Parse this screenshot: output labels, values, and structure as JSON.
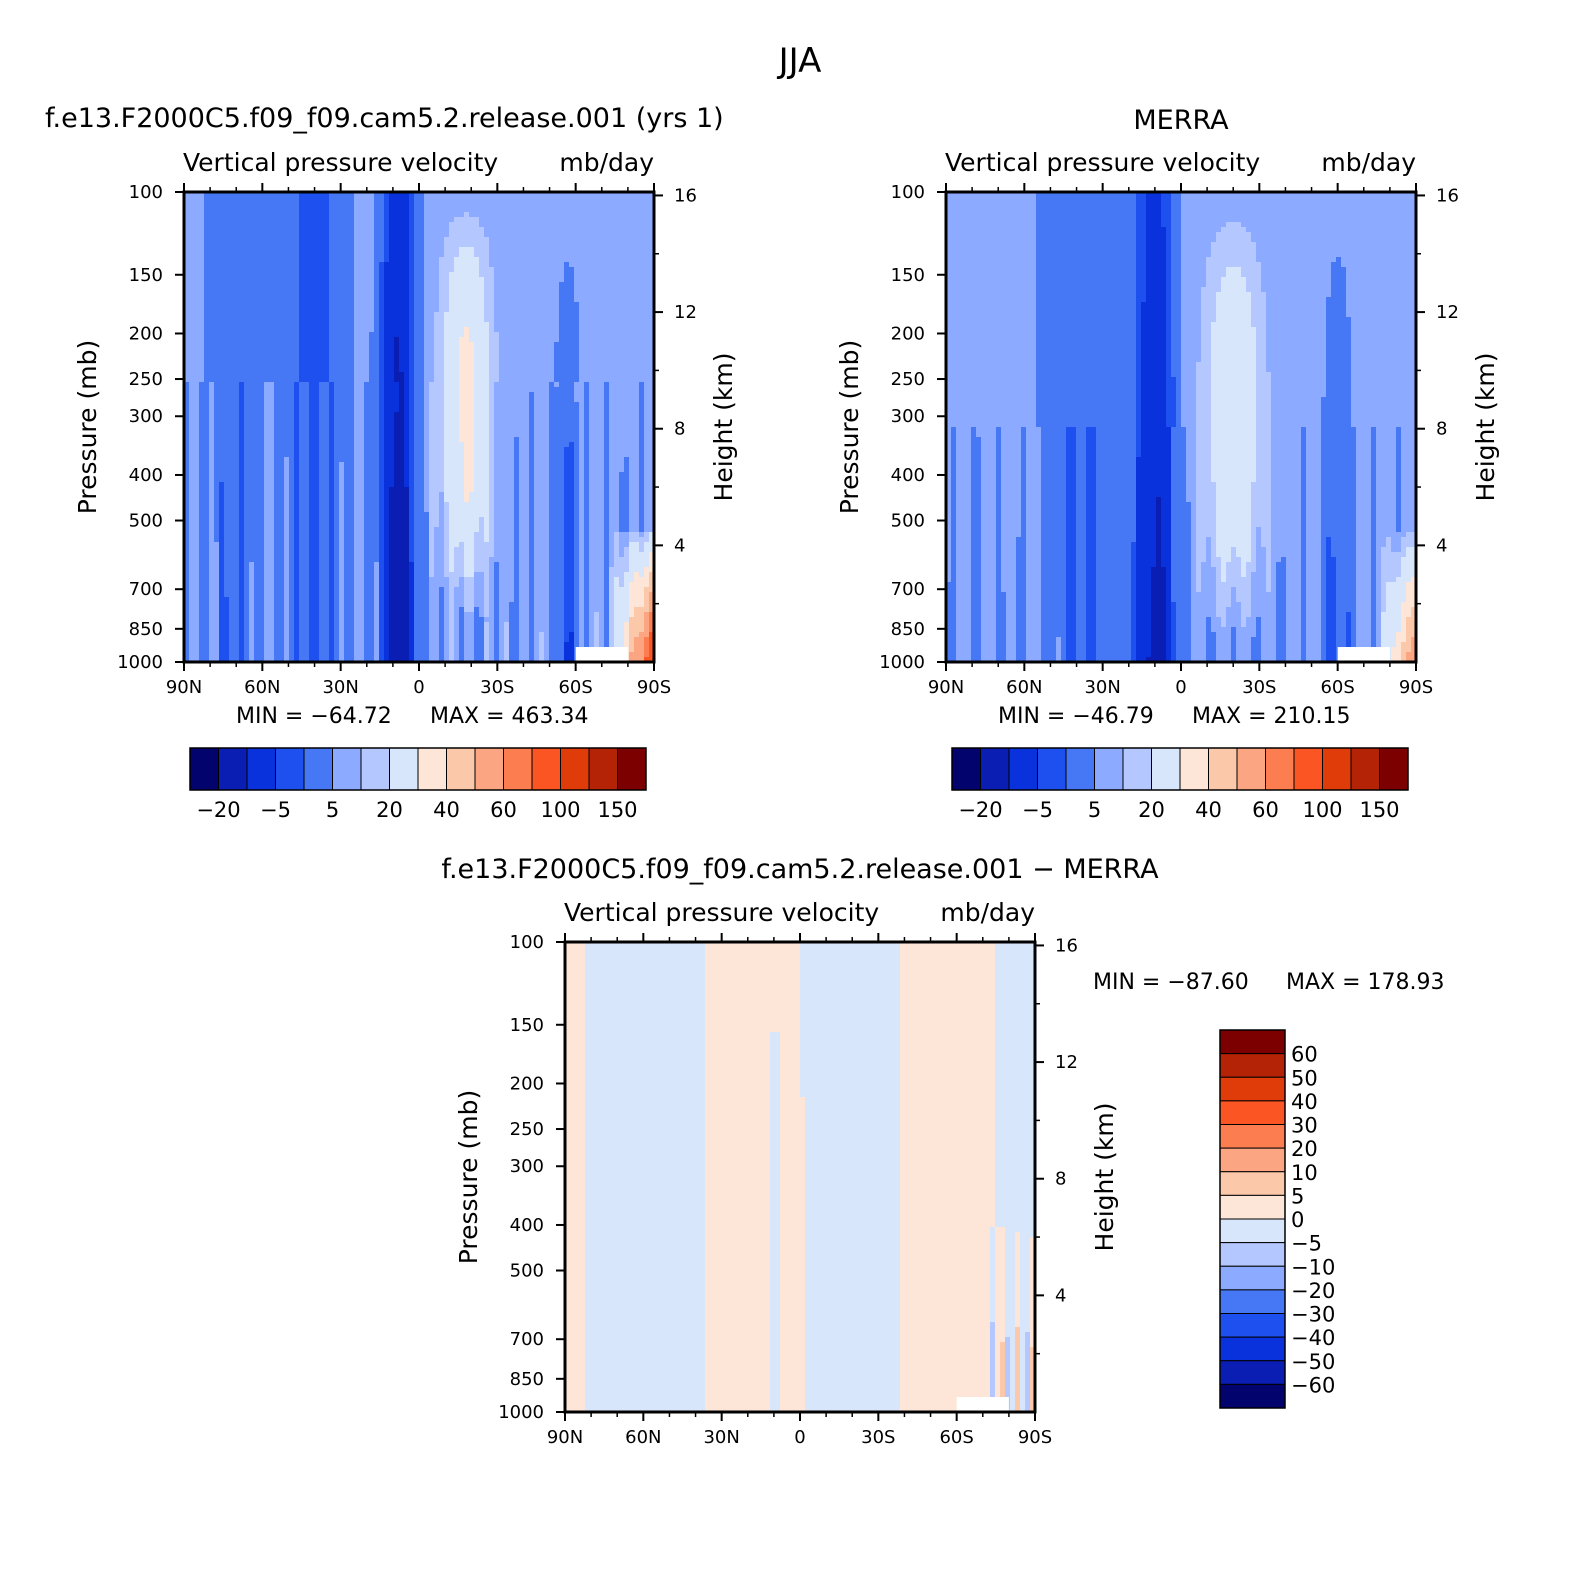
{
  "figure": {
    "season": "JJA"
  },
  "colors": {
    "model_obs_palette": [
      "#03036e",
      "#0a1eb4",
      "#0a32dc",
      "#1e50f0",
      "#4678f5",
      "#8caaff",
      "#b4c8ff",
      "#d7e6fa",
      "#fde6d7",
      "#fcc8aa",
      "#fca582",
      "#fc7d50",
      "#fa5523",
      "#e03c0a",
      "#b42306",
      "#7d0000"
    ],
    "diff_palette": [
      "#03036e",
      "#0a1eb4",
      "#0a32dc",
      "#1e50f0",
      "#4678f5",
      "#8caaff",
      "#b4c8ff",
      "#d7e6fa",
      "#fde6d7",
      "#fcc8aa",
      "#fca582",
      "#fc7d50",
      "#fa5523",
      "#e03c0a",
      "#b42306",
      "#7d0000"
    ]
  },
  "chart_data": [
    {
      "type": "heatmap",
      "title": "f.e13.F2000C5.f09_f09.cam5.2.release.001 (yrs 1)",
      "subtitle_left": "Vertical pressure velocity",
      "subtitle_right": "mb/day",
      "ylabel": "Pressure (mb)",
      "y2label": "Height (km)",
      "x_ticks": [
        "90N",
        "60N",
        "30N",
        "0",
        "30S",
        "60S",
        "90S"
      ],
      "x_values": [
        90,
        60,
        30,
        0,
        -30,
        -60,
        -90
      ],
      "y_ticks": [
        "100",
        "150",
        "200",
        "250",
        "300",
        "400",
        "500",
        "700",
        "850",
        "1000"
      ],
      "y_values": [
        100,
        150,
        200,
        250,
        300,
        400,
        500,
        700,
        850,
        1000
      ],
      "y2_ticks": [
        "16",
        "12",
        "8",
        "4"
      ],
      "y2_values": [
        16,
        12,
        8,
        4
      ],
      "ylim": [
        1000,
        100
      ],
      "yscale": "log",
      "min_label": "MIN = −64.72",
      "max_label": "MAX = 463.34",
      "min": -64.72,
      "max": 463.34,
      "colorbar": {
        "orientation": "horizontal",
        "labels": [
          "−20",
          "−5",
          "5",
          "20",
          "40",
          "60",
          "100",
          "150"
        ]
      },
      "field": "model"
    },
    {
      "type": "heatmap",
      "title": "MERRA",
      "subtitle_left": "Vertical pressure velocity",
      "subtitle_right": "mb/day",
      "ylabel": "Pressure (mb)",
      "y2label": "Height (km)",
      "x_ticks": [
        "90N",
        "60N",
        "30N",
        "0",
        "30S",
        "60S",
        "90S"
      ],
      "x_values": [
        90,
        60,
        30,
        0,
        -30,
        -60,
        -90
      ],
      "y_ticks": [
        "100",
        "150",
        "200",
        "250",
        "300",
        "400",
        "500",
        "700",
        "850",
        "1000"
      ],
      "y_values": [
        100,
        150,
        200,
        250,
        300,
        400,
        500,
        700,
        850,
        1000
      ],
      "y2_ticks": [
        "16",
        "12",
        "8",
        "4"
      ],
      "y2_values": [
        16,
        12,
        8,
        4
      ],
      "ylim": [
        1000,
        100
      ],
      "yscale": "log",
      "min_label": "MIN = −46.79",
      "max_label": "MAX = 210.15",
      "min": -46.79,
      "max": 210.15,
      "colorbar": {
        "orientation": "horizontal",
        "labels": [
          "−20",
          "−5",
          "5",
          "20",
          "40",
          "60",
          "100",
          "150"
        ]
      },
      "field": "obs"
    },
    {
      "type": "heatmap",
      "title": "f.e13.F2000C5.f09_f09.cam5.2.release.001 − MERRA",
      "subtitle_left": "Vertical pressure velocity",
      "subtitle_right": "mb/day",
      "ylabel": "Pressure (mb)",
      "y2label": "Height (km)",
      "x_ticks": [
        "90N",
        "60N",
        "30N",
        "0",
        "30S",
        "60S",
        "90S"
      ],
      "x_values": [
        90,
        60,
        30,
        0,
        -30,
        -60,
        -90
      ],
      "y_ticks": [
        "100",
        "150",
        "200",
        "250",
        "300",
        "400",
        "500",
        "700",
        "850",
        "1000"
      ],
      "y_values": [
        100,
        150,
        200,
        250,
        300,
        400,
        500,
        700,
        850,
        1000
      ],
      "y2_ticks": [
        "16",
        "12",
        "8",
        "4"
      ],
      "y2_values": [
        16,
        12,
        8,
        4
      ],
      "ylim": [
        1000,
        100
      ],
      "yscale": "log",
      "min_label": "MIN = −87.60",
      "max_label": "MAX = 178.93",
      "min": -87.6,
      "max": 178.93,
      "colorbar": {
        "orientation": "vertical",
        "labels": [
          "60",
          "50",
          "40",
          "30",
          "20",
          "10",
          "5",
          "0",
          "−5",
          "−10",
          "−20",
          "−30",
          "−40",
          "−50",
          "−60"
        ]
      },
      "field": "diff"
    }
  ]
}
